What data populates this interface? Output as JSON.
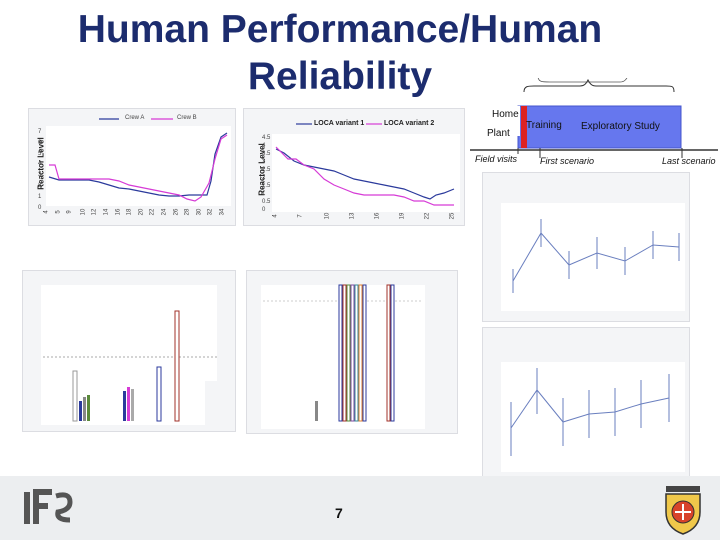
{
  "slide": {
    "title_line1": "Human Performance/Human",
    "title_line2": "Reliability",
    "page_number": "7"
  },
  "timeline": {
    "home_label": "Home",
    "plant_label": "Plant",
    "training_label": "Training",
    "exploratory_label": "Exploratory Study",
    "field_visits": "Field visits",
    "first_scenario": "First scenario",
    "last_scenario": "Last scenario",
    "colors": {
      "box": "#6677ee",
      "marker": "#dd2222"
    }
  },
  "chart1": {
    "legend": [
      "Crew A",
      "Crew B"
    ],
    "ylabel": "Reactor Level",
    "xticks": [
      "4",
      "5",
      "9",
      "10",
      "12",
      "14",
      "16",
      "18",
      "20",
      "22",
      "24",
      "26",
      "28",
      "30",
      "32",
      "34"
    ],
    "yticks": [
      "7",
      "6",
      "5",
      "4",
      "3",
      "2",
      "1",
      "0"
    ],
    "colors": [
      "#2b3a9c",
      "#d63bd6"
    ]
  },
  "chart2": {
    "legend": [
      "LOCA variant 1",
      "LOCA variant 2"
    ],
    "ylabel": "Reactor Level",
    "xticks": [
      "4",
      "7",
      "10",
      "13",
      "16",
      "19",
      "22",
      "25"
    ],
    "yticks": [
      "4.5",
      "4",
      "3.5",
      "3",
      "2.5",
      "2",
      "1.5",
      "1",
      "0.5",
      "0"
    ],
    "colors": [
      "#2b3a9c",
      "#d63bd6"
    ]
  }
}
